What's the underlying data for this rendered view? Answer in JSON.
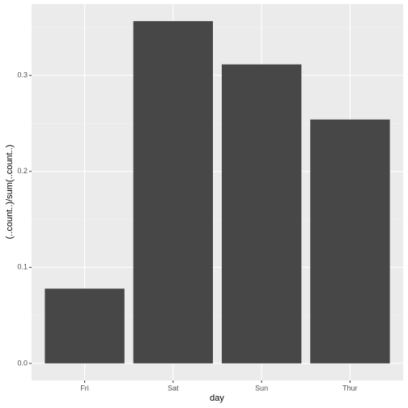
{
  "chart_data": {
    "type": "bar",
    "x_label": "day",
    "y_label": "(..count..)/sum(..count..)",
    "categories": [
      "Fri",
      "Sat",
      "Sun",
      "Thur"
    ],
    "values": [
      0.0779,
      0.3566,
      0.3115,
      0.2541
    ],
    "color": "#474747",
    "ylim": [
      -0.0178,
      0.3744
    ],
    "yticks": [
      {
        "value": 0,
        "label": "0.0"
      },
      0.1,
      0.2,
      0.3
    ],
    "grid": true
  }
}
